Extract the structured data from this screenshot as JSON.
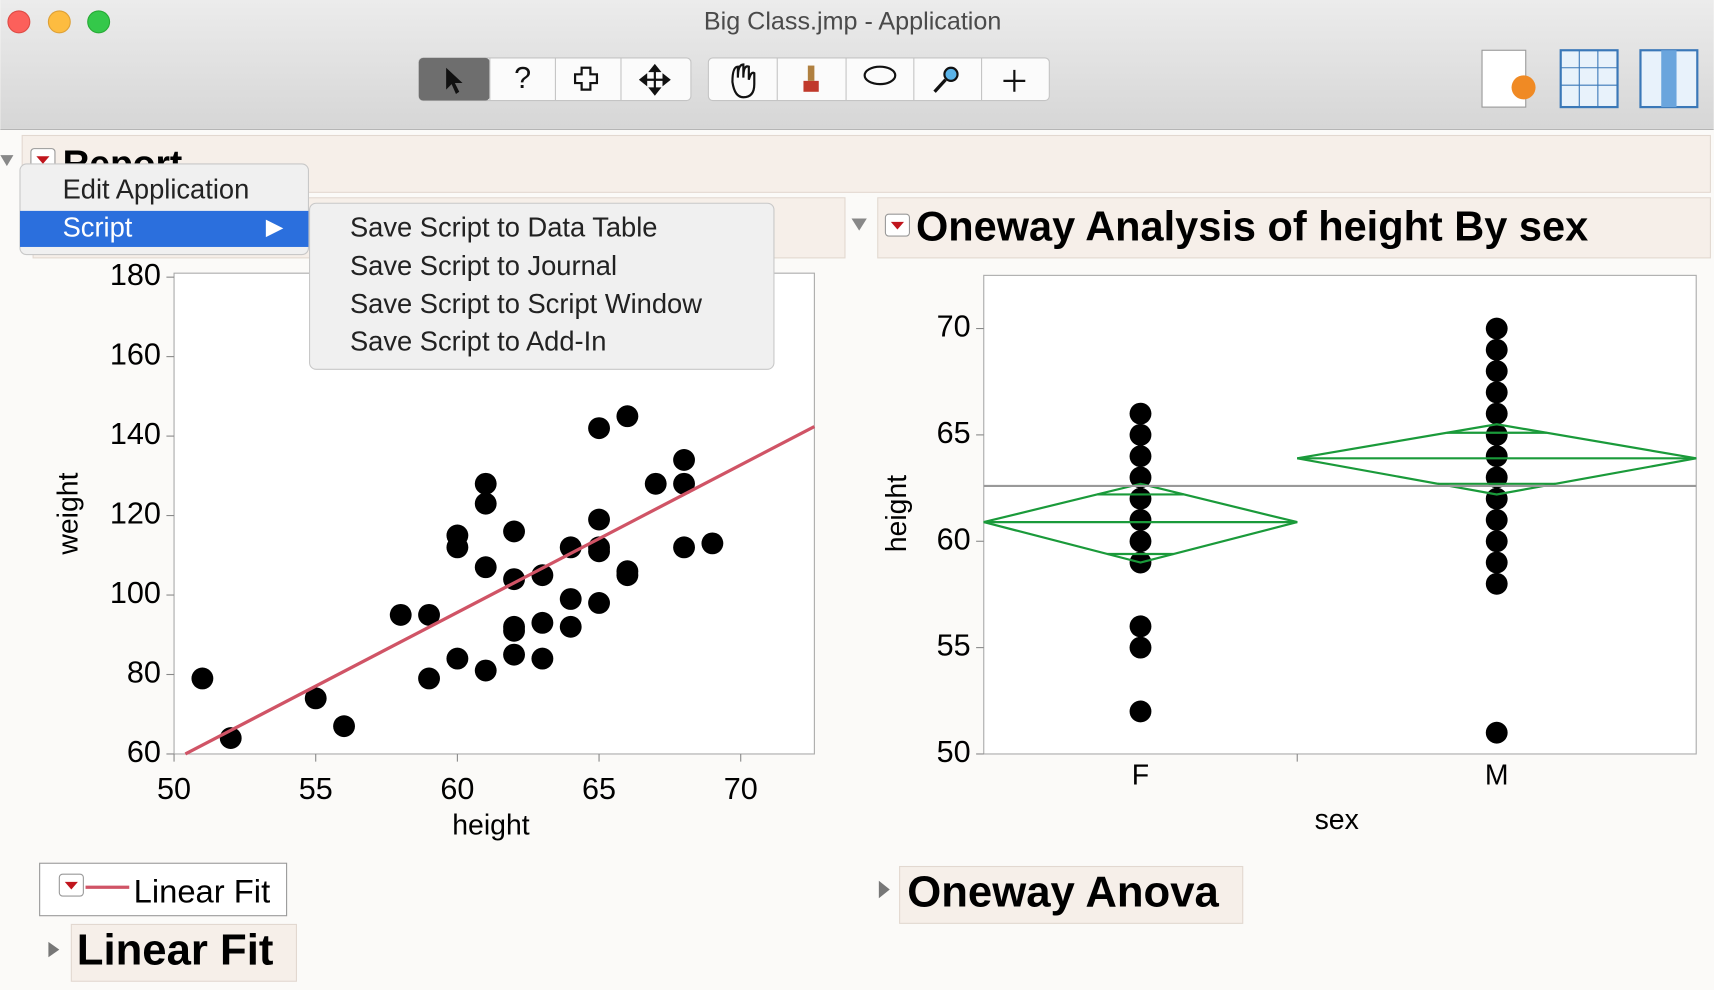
{
  "window": {
    "title": "Big Class.jmp - Application"
  },
  "toolbar": {
    "help_glyph": "?"
  },
  "report": {
    "title": "Report"
  },
  "context_menu": {
    "items": [
      "Edit Application",
      "Script"
    ]
  },
  "submenu": {
    "items": [
      "Save Script to Data Table",
      "Save Script to Journal",
      "Save Script to Script Window",
      "Save Script to Add-In"
    ]
  },
  "scatter": {
    "type": "scatter",
    "x_label": "height",
    "y_label": "weight",
    "color": "#000000",
    "line_color": "#d05466",
    "x": [
      51,
      52,
      55,
      56,
      58,
      59,
      59,
      60,
      60,
      60,
      61,
      61,
      61,
      61,
      62,
      62,
      62,
      62,
      62,
      63,
      63,
      63,
      64,
      64,
      64,
      65,
      65,
      65,
      65,
      65,
      66,
      66,
      66,
      67,
      68,
      68,
      68,
      69
    ],
    "y": [
      79,
      64,
      74,
      67,
      95,
      95,
      79,
      115,
      112,
      84,
      128,
      123,
      107,
      81,
      116,
      104,
      92,
      91,
      85,
      105,
      93,
      84,
      112,
      99,
      92,
      142,
      119,
      112,
      111,
      98,
      145,
      106,
      105,
      128,
      134,
      128,
      112,
      113
    ],
    "fit_line": {
      "x": [
        50.4,
        72.6
      ],
      "y": [
        60,
        142.4
      ]
    },
    "xlim": [
      50,
      72.6
    ],
    "ylim": [
      60,
      181
    ],
    "xticks": [
      50,
      55,
      60,
      65,
      70
    ],
    "yticks": [
      60,
      80,
      100,
      120,
      140,
      160,
      180
    ]
  },
  "fit_legend": "Linear Fit",
  "fit_outline": "Linear Fit",
  "oneway": {
    "type": "oneway",
    "title": "Oneway Analysis of height By sex",
    "x_label": "sex",
    "y_label": "height",
    "color": "#000000",
    "diamond_color": "#1a9a3a",
    "categories": [
      "F",
      "M"
    ],
    "series": [
      {
        "name": "F",
        "values": [
          66,
          65,
          64,
          63,
          62,
          61,
          60,
          59,
          56,
          55,
          52
        ]
      },
      {
        "name": "M",
        "values": [
          70,
          69,
          68,
          67,
          66,
          65,
          64,
          63,
          62,
          61,
          60,
          59,
          58,
          51
        ]
      }
    ],
    "grand_mean": 62.6,
    "diamonds": [
      {
        "mean": 60.9,
        "upper": 62.7,
        "lower": 59.0,
        "overlap": [
          62.2,
          59.4
        ]
      },
      {
        "mean": 63.9,
        "upper": 65.5,
        "lower": 62.2,
        "overlap": [
          65.1,
          62.7
        ]
      }
    ],
    "ylim": [
      50,
      72.5
    ],
    "yticks": [
      50,
      55,
      60,
      65,
      70
    ]
  },
  "anova_outline": "Oneway Anova"
}
